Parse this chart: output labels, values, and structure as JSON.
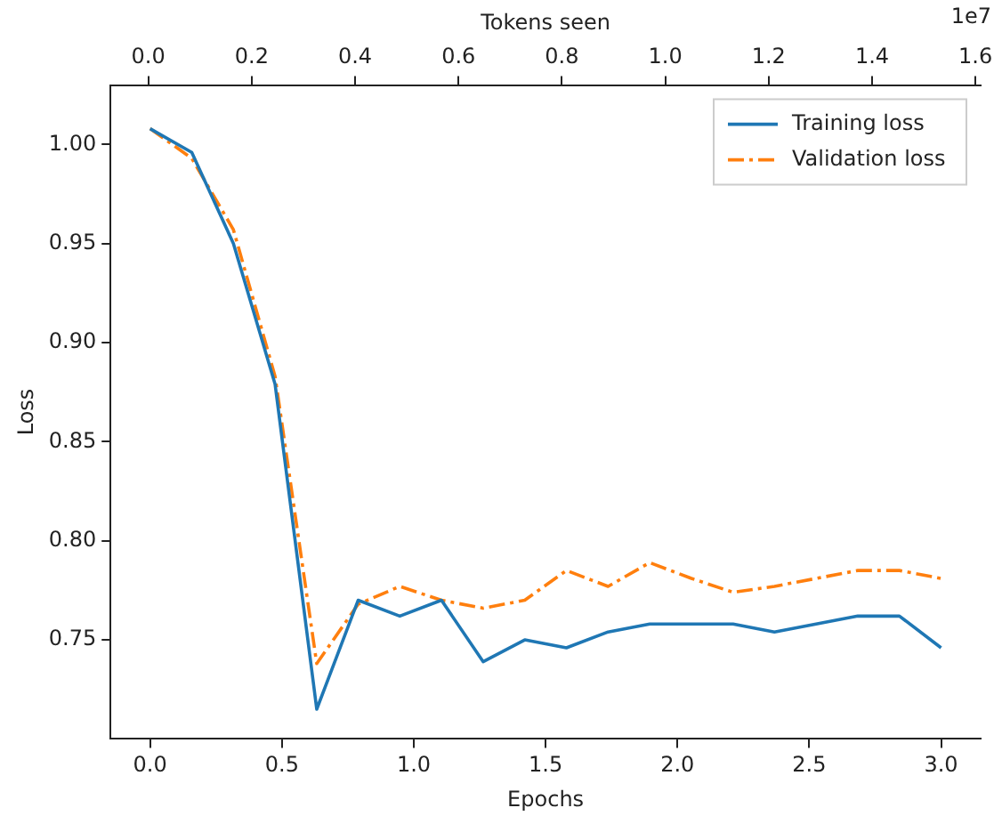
{
  "chart_data": {
    "type": "line",
    "xlabel": "Epochs",
    "ylabel": "Loss",
    "x2label": "Tokens seen",
    "x": [
      0,
      0.158,
      0.316,
      0.474,
      0.632,
      0.789,
      0.947,
      1.105,
      1.263,
      1.421,
      1.579,
      1.737,
      1.895,
      2.053,
      2.211,
      2.368,
      2.526,
      2.684,
      2.842,
      3.0
    ],
    "series": [
      {
        "name": "Training loss",
        "color": "#1f77b4",
        "line_style": "solid",
        "values": [
          1.008,
          0.996,
          0.95,
          0.879,
          0.715,
          0.77,
          0.762,
          0.77,
          0.739,
          0.75,
          0.746,
          0.754,
          0.758,
          0.758,
          0.758,
          0.754,
          0.758,
          0.762,
          0.762,
          0.746
        ]
      },
      {
        "name": "Validation loss",
        "color": "#ff7f0e",
        "line_style": "dashed",
        "values": [
          1.008,
          0.993,
          0.957,
          0.883,
          0.738,
          0.768,
          0.777,
          0.77,
          0.766,
          0.77,
          0.785,
          0.777,
          0.789,
          0.781,
          0.774,
          0.777,
          0.781,
          0.785,
          0.785,
          0.781
        ]
      }
    ],
    "xlim": [
      -0.15,
      3.15
    ],
    "xticks": [
      {
        "value": 0,
        "label": "0.0"
      },
      {
        "value": 0.5,
        "label": "0.5"
      },
      {
        "value": 1,
        "label": "1.0"
      },
      {
        "value": 1.5,
        "label": "1.5"
      },
      {
        "value": 2,
        "label": "2.0"
      },
      {
        "value": 2.5,
        "label": "2.5"
      },
      {
        "value": 3,
        "label": "3.0"
      }
    ],
    "x2lim": [
      -0.073,
      1.61
    ],
    "x2ticks": [
      {
        "value": 0,
        "label": "0.0"
      },
      {
        "value": 0.2,
        "label": "0.2"
      },
      {
        "value": 0.4,
        "label": "0.4"
      },
      {
        "value": 0.6,
        "label": "0.6"
      },
      {
        "value": 0.8,
        "label": "0.8"
      },
      {
        "value": 1,
        "label": "1.0"
      },
      {
        "value": 1.2,
        "label": "1.2"
      },
      {
        "value": 1.4,
        "label": "1.4"
      },
      {
        "value": 1.6,
        "label": "1.6"
      }
    ],
    "ylim": [
      0.7,
      1.03
    ],
    "yticks": [
      0.75,
      {
        "value": 0.8,
        "label": "0.80"
      },
      0.85,
      {
        "value": 0.9,
        "label": "0.90"
      },
      0.95,
      {
        "value": 1,
        "label": "1.00"
      }
    ],
    "annotations": [
      "1e7"
    ],
    "grid": false,
    "legend": "top right",
    "marker": "none"
  }
}
